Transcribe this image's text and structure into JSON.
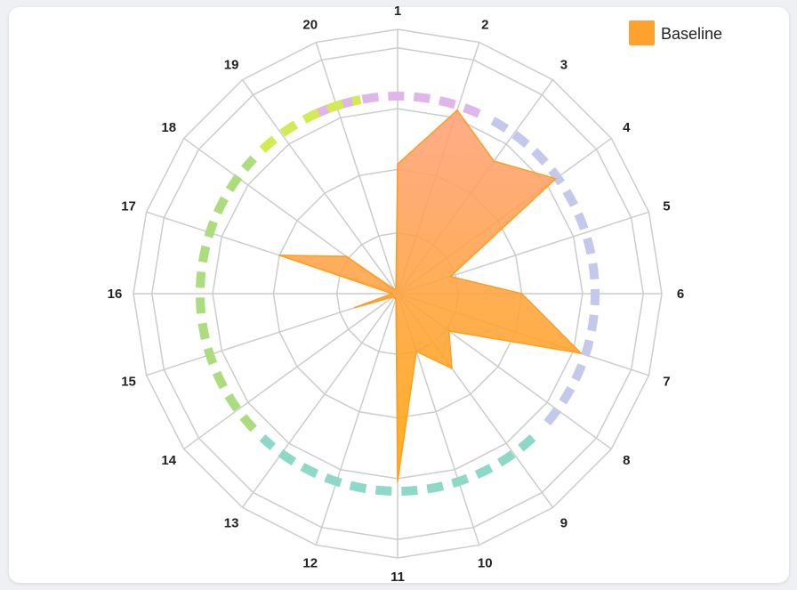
{
  "chart_data": {
    "type": "radar",
    "axes": [
      "1",
      "2",
      "3",
      "4",
      "5",
      "6",
      "7",
      "8",
      "9",
      "10",
      "11",
      "12",
      "13",
      "14",
      "15",
      "16",
      "17",
      "18",
      "19",
      "20"
    ],
    "series": [
      {
        "name": "Baseline",
        "values": [
          0.49,
          0.73,
          0.62,
          0.74,
          0.21,
          0.47,
          0.73,
          0.24,
          0.35,
          0.23,
          0.71,
          0.02,
          0.02,
          0.02,
          0.17,
          0.02,
          0.47,
          0.24,
          0.02,
          0.02
        ]
      }
    ],
    "rlim": [
      0,
      1
    ],
    "grid": true,
    "legend_position": "top-right",
    "group_arcs": [
      {
        "axes_from": "20",
        "axes_to": "2",
        "color": "#dfb6ea"
      },
      {
        "axes_from": "3",
        "axes_to": "8",
        "color": "#c4c8ea"
      },
      {
        "axes_from": "9",
        "axes_to": "13",
        "color": "#8dd8c6"
      },
      {
        "axes_from": "14",
        "axes_to": "18",
        "color": "#abdd7f"
      },
      {
        "axes_from": "19",
        "axes_to": "20",
        "color": "#d3ea52"
      }
    ]
  },
  "colors": {
    "series_fill_top": "#ffa07a",
    "series_fill_bottom": "#ffa500",
    "series_stroke": "#ff9d1f",
    "grid": "#cccccc",
    "legend_swatch": "#ffa12e"
  }
}
